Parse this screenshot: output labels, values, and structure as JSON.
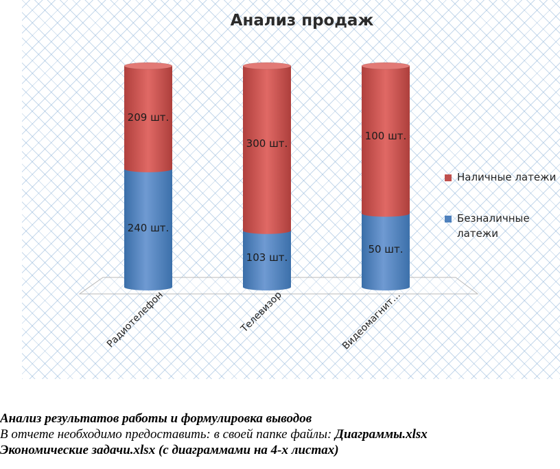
{
  "chart_data": {
    "type": "bar",
    "stacked": true,
    "title": "Анализ продаж",
    "categories": [
      "Радиотелефон",
      "Телевизор",
      "Видеомагнит…"
    ],
    "series": [
      {
        "name": "Безналичные латежи",
        "values": [
          240,
          103,
          50
        ],
        "labels": [
          "240 шт.",
          "103 шт.",
          "50 шт."
        ],
        "color": "#4f81bd"
      },
      {
        "name": "Наличные латежи",
        "values": [
          209,
          300,
          100
        ],
        "labels": [
          "209 шт.",
          "300 шт.",
          "100 шт."
        ],
        "color": "#c0504d"
      }
    ],
    "legend_position": "right",
    "legend_lines": [
      [
        "Наличные латежи"
      ],
      [
        "Безналичные",
        "латежи"
      ]
    ],
    "three_d": true
  },
  "text": {
    "line1": "Анализ результатов работы и формулировка выводов",
    "line2_prefix": "В  отчете необходимо предоставить: в своей папке файлы: ",
    "line2_file": "Диаграммы.xlsx",
    "line3_file": "Экономические задачи.xlsx (с диаграммами на 4-х листах)"
  }
}
